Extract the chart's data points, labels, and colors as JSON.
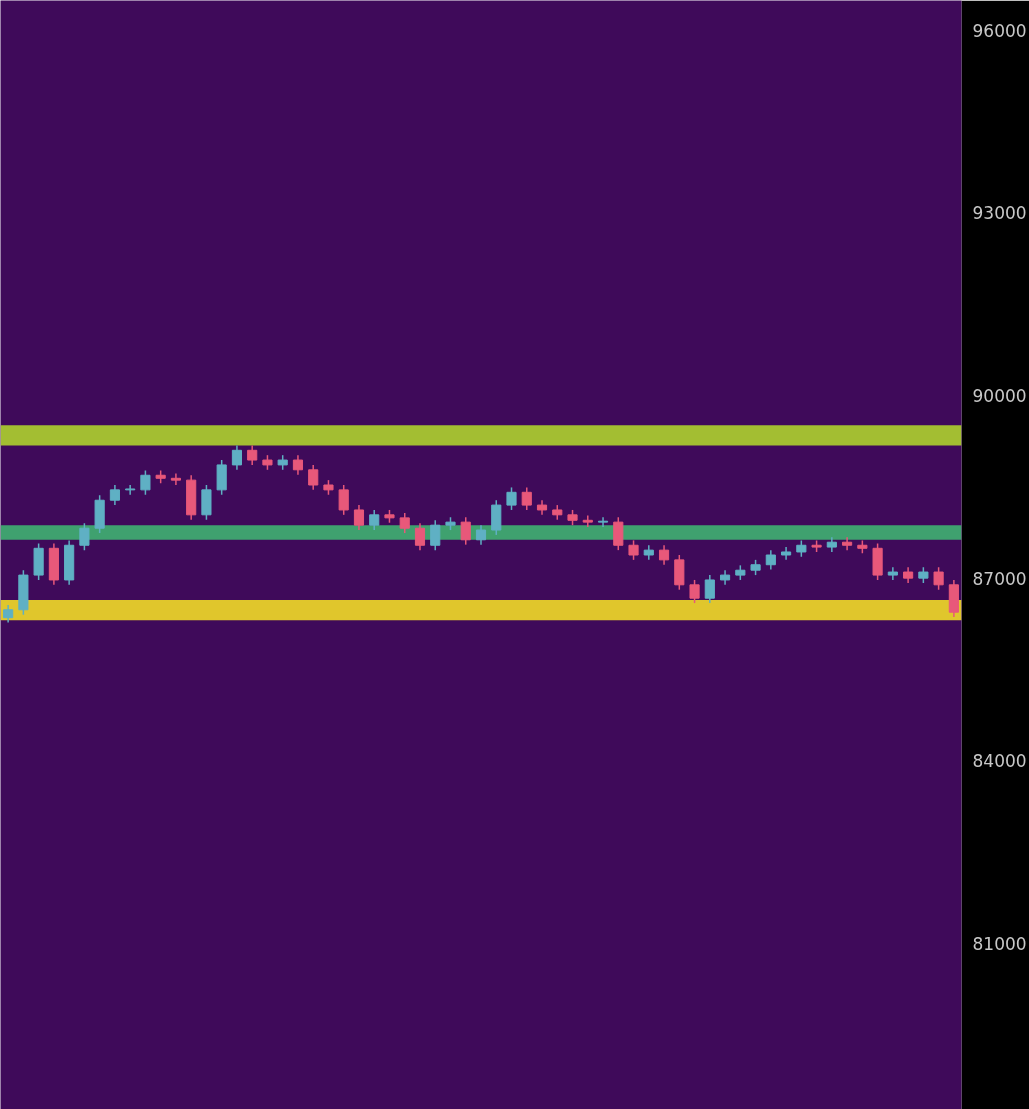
{
  "chart_data": {
    "type": "candlestick",
    "categories": [
      null,
      null,
      null,
      null,
      null,
      null,
      null,
      null,
      null,
      null,
      null,
      null,
      null,
      null,
      null,
      null,
      null,
      null,
      null,
      null,
      null,
      null,
      null,
      null,
      null,
      null,
      null,
      null,
      null,
      null,
      null,
      null,
      null,
      null,
      null,
      null,
      null,
      null,
      null,
      null,
      null,
      null,
      null,
      null,
      null,
      null,
      null,
      null,
      null,
      null,
      null,
      null,
      null,
      null,
      null,
      null,
      null,
      null,
      null,
      null,
      null,
      null,
      null
    ],
    "ohlc": [
      [
        86350,
        86560,
        86270,
        86480
      ],
      [
        86480,
        87130,
        86400,
        87050
      ],
      [
        87050,
        87570,
        86970,
        87490
      ],
      [
        87490,
        87570,
        86890,
        86970
      ],
      [
        86970,
        87620,
        86890,
        87540
      ],
      [
        87540,
        87900,
        87460,
        87820
      ],
      [
        87820,
        88360,
        87740,
        88280
      ],
      [
        88280,
        88530,
        88200,
        88450
      ],
      [
        88450,
        88530,
        88370,
        88450
      ],
      [
        88450,
        88770,
        88370,
        88690
      ],
      [
        88690,
        88770,
        88560,
        88640
      ],
      [
        88640,
        88720,
        88530,
        88610
      ],
      [
        88610,
        88690,
        87960,
        88040
      ],
      [
        88040,
        88530,
        87960,
        88450
      ],
      [
        88450,
        88940,
        88370,
        88860
      ],
      [
        88860,
        89180,
        88780,
        89100
      ],
      [
        89100,
        89180,
        88860,
        88940
      ],
      [
        88940,
        89020,
        88780,
        88860
      ],
      [
        88860,
        89020,
        88780,
        88940
      ],
      [
        88940,
        89020,
        88700,
        88780
      ],
      [
        88780,
        88860,
        88450,
        88530
      ],
      [
        88530,
        88610,
        88370,
        88450
      ],
      [
        88450,
        88530,
        88040,
        88120
      ],
      [
        88120,
        88200,
        87790,
        87870
      ],
      [
        87870,
        88120,
        87790,
        88040
      ],
      [
        88040,
        88120,
        87910,
        87990
      ],
      [
        87990,
        88070,
        87740,
        87820
      ],
      [
        87820,
        87900,
        87460,
        87540
      ],
      [
        87540,
        87950,
        87460,
        87870
      ],
      [
        87870,
        88000,
        87790,
        87920
      ],
      [
        87920,
        88000,
        87550,
        87630
      ],
      [
        87630,
        87870,
        87550,
        87790
      ],
      [
        87790,
        88280,
        87710,
        88200
      ],
      [
        88200,
        88490,
        88120,
        88410
      ],
      [
        88410,
        88490,
        88120,
        88200
      ],
      [
        88200,
        88280,
        88040,
        88120
      ],
      [
        88120,
        88200,
        87960,
        88040
      ],
      [
        88040,
        88120,
        87870,
        87950
      ],
      [
        87950,
        88030,
        87840,
        87920
      ],
      [
        87920,
        88000,
        87840,
        87920
      ],
      [
        87920,
        88000,
        87460,
        87540
      ],
      [
        87540,
        87620,
        87300,
        87380
      ],
      [
        87380,
        87540,
        87300,
        87460
      ],
      [
        87460,
        87540,
        87220,
        87300
      ],
      [
        87300,
        87380,
        86810,
        86890
      ],
      [
        86890,
        86970,
        86590,
        86670
      ],
      [
        86670,
        87050,
        86590,
        86970
      ],
      [
        86970,
        87130,
        86890,
        87050
      ],
      [
        87050,
        87210,
        86970,
        87130
      ],
      [
        87130,
        87300,
        87050,
        87220
      ],
      [
        87220,
        87460,
        87140,
        87380
      ],
      [
        87380,
        87510,
        87300,
        87430
      ],
      [
        87430,
        87620,
        87350,
        87540
      ],
      [
        87540,
        87620,
        87430,
        87510
      ],
      [
        87510,
        87670,
        87430,
        87590
      ],
      [
        87590,
        87670,
        87460,
        87540
      ],
      [
        87540,
        87620,
        87410,
        87490
      ],
      [
        87490,
        87570,
        86970,
        87050
      ],
      [
        87050,
        87180,
        86970,
        87100
      ],
      [
        87100,
        87180,
        86920,
        87000
      ],
      [
        87000,
        87180,
        86920,
        87100
      ],
      [
        87100,
        87180,
        86810,
        86890
      ],
      [
        86890,
        86970,
        86360,
        86440
      ]
    ],
    "ylim": [
      78270,
      96490
    ],
    "yticks": [
      81000,
      84000,
      87000,
      90000,
      93000,
      96000
    ],
    "tick_labels": "y",
    "bands": [
      {
        "axis": "y",
        "from": 89180,
        "to": 89510,
        "color": "#b5de2b"
      },
      {
        "axis": "y",
        "from": 86310,
        "to": 86640,
        "color": "#fde725"
      },
      {
        "axis": "y",
        "from": 87630,
        "to": 87870,
        "color": "#3fbc73"
      }
    ]
  }
}
